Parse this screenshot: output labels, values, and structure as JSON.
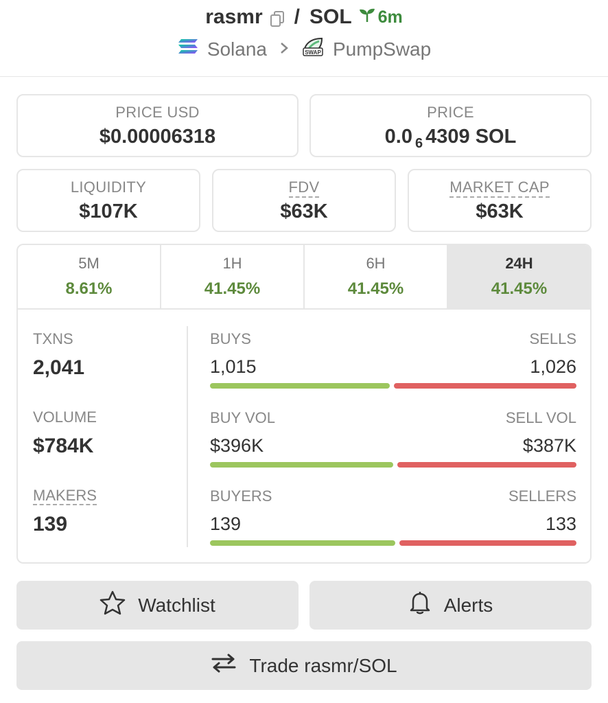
{
  "header": {
    "token": "rasmr",
    "quote": "SOL",
    "age": "6m",
    "chain": "Solana",
    "dex": "PumpSwap"
  },
  "price_usd": {
    "label": "PRICE USD",
    "value": "$0.00006318"
  },
  "price_native": {
    "label": "PRICE",
    "prefix": "0.0",
    "zeros": "6",
    "digits": "4309",
    "unit": "SOL"
  },
  "liquidity": {
    "label": "LIQUIDITY",
    "value": "$107K"
  },
  "fdv": {
    "label": "FDV",
    "value": "$63K"
  },
  "market_cap": {
    "label": "MARKET CAP",
    "value": "$63K"
  },
  "tabs": [
    {
      "label": "5M",
      "value": "8.61%"
    },
    {
      "label": "1H",
      "value": "41.45%"
    },
    {
      "label": "6H",
      "value": "41.45%"
    },
    {
      "label": "24H",
      "value": "41.45%",
      "active": true
    }
  ],
  "txns": {
    "label": "TXNS",
    "value": "2,041"
  },
  "volume": {
    "label": "VOLUME",
    "value": "$784K"
  },
  "makers": {
    "label": "MAKERS",
    "value": "139"
  },
  "buys_sells": {
    "left_label": "BUYS",
    "right_label": "SELLS",
    "left_value": "1,015",
    "right_value": "1,026",
    "buy_share": 0.497
  },
  "buy_sell_vol": {
    "left_label": "BUY VOL",
    "right_label": "SELL VOL",
    "left_value": "$396K",
    "right_value": "$387K",
    "buy_share": 0.506
  },
  "buyers_sellers": {
    "left_label": "BUYERS",
    "right_label": "SELLERS",
    "left_value": "139",
    "right_value": "133",
    "buy_share": 0.511
  },
  "buttons": {
    "watchlist": "Watchlist",
    "alerts": "Alerts",
    "trade": "Trade rasmr/SOL"
  },
  "colors": {
    "buy": "#9cc65e",
    "sell": "#e06161",
    "positive": "#5d8a3c",
    "age": "#3d8b3d"
  }
}
